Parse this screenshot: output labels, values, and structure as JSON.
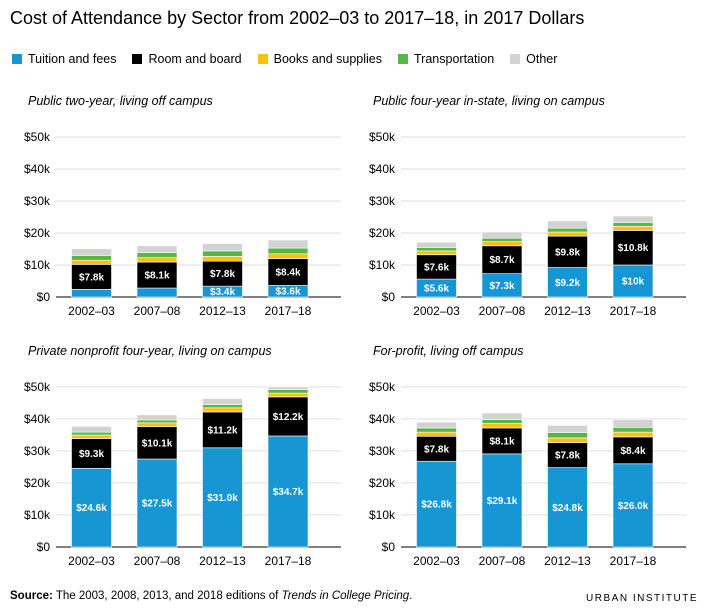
{
  "title": "Cost of Attendance by Sector from 2002–03 to 2017–18, in 2017 Dollars",
  "colors": {
    "Tuition and fees": "#1696d2",
    "Room and board": "#000000",
    "Books and supplies": "#fdbf11",
    "Transportation": "#55b748",
    "Other": "#d2d2d2"
  },
  "legend": [
    "Tuition and fees",
    "Room and board",
    "Books and supplies",
    "Transportation",
    "Other"
  ],
  "footer": {
    "source_label": "Source:",
    "source_text_before": "The 2003, 2008, 2013, and 2018 editions of",
    "source_italic": "Trends in College Pricing",
    "source_text_after": "."
  },
  "brand": "URBAN INSTITUTE",
  "chart_data": [
    {
      "type": "bar",
      "stacked": true,
      "title": "Public two-year, living off campus",
      "categories": [
        "2002–03",
        "2007–08",
        "2012–13",
        "2017–18"
      ],
      "ylim": [
        0,
        50000
      ],
      "yticks": [
        "$0",
        "$10k",
        "$20k",
        "$30k",
        "$40k",
        "$50k"
      ],
      "series": [
        {
          "name": "Tuition and fees",
          "values": [
            2400,
            2800,
            3400,
            3600
          ],
          "labels": [
            "",
            "",
            "$3.4k",
            "$3.6k"
          ]
        },
        {
          "name": "Room and board",
          "values": [
            7800,
            8100,
            7800,
            8400
          ],
          "labels": [
            "$7.8k",
            "$8.1k",
            "$7.8k",
            "$8.4k"
          ]
        },
        {
          "name": "Books and supplies",
          "values": [
            1300,
            1400,
            1500,
            1500
          ],
          "labels": [
            "",
            "",
            "",
            ""
          ]
        },
        {
          "name": "Transportation",
          "values": [
            1500,
            1600,
            1700,
            1800
          ],
          "labels": [
            "",
            "",
            "",
            ""
          ]
        },
        {
          "name": "Other",
          "values": [
            2100,
            2100,
            2300,
            2500
          ],
          "labels": [
            "",
            "",
            "",
            ""
          ]
        }
      ]
    },
    {
      "type": "bar",
      "stacked": true,
      "title": "Public four-year in-state, living on campus",
      "categories": [
        "2002–03",
        "2007–08",
        "2012–13",
        "2017–18"
      ],
      "ylim": [
        0,
        50000
      ],
      "yticks": [
        "$0",
        "$10k",
        "$20k",
        "$30k",
        "$40k",
        "$50k"
      ],
      "series": [
        {
          "name": "Tuition and fees",
          "values": [
            5600,
            7300,
            9200,
            10000
          ],
          "labels": [
            "$5.6k",
            "$7.3k",
            "$9.2k",
            "$10k"
          ]
        },
        {
          "name": "Room and board",
          "values": [
            7600,
            8700,
            9800,
            10800
          ],
          "labels": [
            "$7.6k",
            "$8.7k",
            "$9.8k",
            "$10.8k"
          ]
        },
        {
          "name": "Books and supplies",
          "values": [
            1200,
            1300,
            1300,
            1300
          ],
          "labels": [
            "",
            "",
            "",
            ""
          ]
        },
        {
          "name": "Transportation",
          "values": [
            1100,
            1100,
            1200,
            1200
          ],
          "labels": [
            "",
            "",
            "",
            ""
          ]
        },
        {
          "name": "Other",
          "values": [
            1600,
            1900,
            2300,
            2000
          ],
          "labels": [
            "",
            "",
            "",
            ""
          ]
        }
      ]
    },
    {
      "type": "bar",
      "stacked": true,
      "title": "Private nonprofit four-year, living on campus",
      "categories": [
        "2002–03",
        "2007–08",
        "2012–13",
        "2017–18"
      ],
      "ylim": [
        0,
        50000
      ],
      "yticks": [
        "$0",
        "$10k",
        "$20k",
        "$30k",
        "$40k",
        "$50k"
      ],
      "series": [
        {
          "name": "Tuition and fees",
          "values": [
            24600,
            27500,
            31000,
            34700
          ],
          "labels": [
            "$24.6k",
            "$27.5k",
            "$31.0k",
            "$34.7k"
          ]
        },
        {
          "name": "Room and board",
          "values": [
            9300,
            10100,
            11200,
            12200
          ],
          "labels": [
            "$9.3k",
            "$10.1k",
            "$11.2k",
            "$12.2k"
          ]
        },
        {
          "name": "Books and supplies",
          "values": [
            1100,
            1200,
            1300,
            1200
          ],
          "labels": [
            "",
            "",
            "",
            ""
          ]
        },
        {
          "name": "Transportation",
          "values": [
            900,
            900,
            1000,
            1100
          ],
          "labels": [
            "",
            "",
            "",
            ""
          ]
        },
        {
          "name": "Other",
          "values": [
            1800,
            1600,
            1900,
            800
          ],
          "labels": [
            "",
            "",
            "",
            ""
          ]
        }
      ]
    },
    {
      "type": "bar",
      "stacked": true,
      "title": "For-profit, living off campus",
      "categories": [
        "2002–03",
        "2007–08",
        "2012–13",
        "2017–18"
      ],
      "ylim": [
        0,
        50000
      ],
      "yticks": [
        "$0",
        "$10k",
        "$20k",
        "$30k",
        "$40k",
        "$50k"
      ],
      "series": [
        {
          "name": "Tuition and fees",
          "values": [
            26800,
            29100,
            24800,
            26000
          ],
          "labels": [
            "$26.8k",
            "$29.1k",
            "$24.8k",
            "$26.0k"
          ]
        },
        {
          "name": "Room and board",
          "values": [
            7800,
            8100,
            7800,
            8400
          ],
          "labels": [
            "$7.8k",
            "$8.1k",
            "$7.8k",
            "$8.4k"
          ]
        },
        {
          "name": "Books and supplies",
          "values": [
            1300,
            1400,
            1500,
            1500
          ],
          "labels": [
            "",
            "",
            "",
            ""
          ]
        },
        {
          "name": "Transportation",
          "values": [
            1300,
            1200,
            1700,
            1500
          ],
          "labels": [
            "",
            "",
            "",
            ""
          ]
        },
        {
          "name": "Other",
          "values": [
            1800,
            2100,
            2200,
            2400
          ],
          "labels": [
            "",
            "",
            "",
            ""
          ]
        }
      ]
    }
  ]
}
